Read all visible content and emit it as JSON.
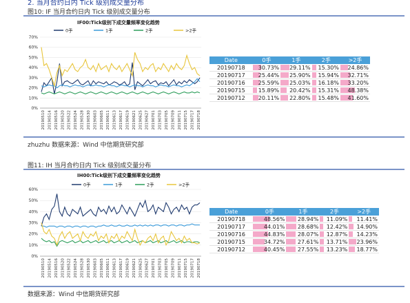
{
  "header": {
    "section_title": "2. 当月合约日内 Tick 级别成交量分布"
  },
  "figures": [
    {
      "caption": "图10:  IF 当月合约日内 Tick 级别成交量分布",
      "source": "zhuzhu 数据来源：Wind    中信期货研究部",
      "chart_data": {
        "type": "line",
        "title": "IF00:Tick级别下成交量频率变化趋势",
        "ylim": [
          0,
          70
        ],
        "yticks": [
          "0%",
          "10%",
          "20%",
          "30%",
          "40%",
          "50%",
          "60%",
          "70%"
        ],
        "x_labels": [
          "20190510",
          "20190514",
          "20190516",
          "20190520",
          "20190522",
          "20190524",
          "20190528",
          "20190530",
          "20190603",
          "20190605",
          "20190611",
          "20190613",
          "20190617",
          "20190619",
          "20190621",
          "20190625",
          "20190627",
          "20190701",
          "20190703",
          "20190705",
          "20190709",
          "20190711",
          "20190715",
          "20190717",
          "20190718"
        ],
        "series": [
          {
            "name": "0手",
            "color": "#1f3a6e",
            "values": [
              16,
              25,
              22,
              26,
              30,
              14,
              26,
              44,
              22,
              26,
              27,
              25,
              24,
              26,
              28,
              24,
              23,
              25,
              27,
              22,
              27,
              24,
              26,
              25,
              24,
              26,
              23,
              24,
              26,
              25,
              23,
              24,
              26,
              22,
              24,
              45,
              18,
              26,
              24,
              22,
              25,
              28,
              24,
              26,
              27,
              23,
              25,
              24,
              26,
              22,
              25,
              28,
              23,
              26,
              24,
              27,
              25,
              28,
              26,
              24,
              26,
              30
            ]
          },
          {
            "name": "1手",
            "color": "#3a9ad9",
            "values": [
              22,
              21,
              22,
              23,
              22,
              22,
              20,
              22,
              23,
              22,
              22,
              21,
              22,
              23,
              22,
              22,
              21,
              22,
              23,
              22,
              22,
              23,
              22,
              22,
              21,
              22,
              23,
              22,
              22,
              21,
              22,
              23,
              22,
              22,
              21,
              22,
              23,
              22,
              22,
              21,
              22,
              23,
              22,
              22,
              21,
              22,
              23,
              22,
              22,
              21,
              22,
              23,
              22,
              22,
              21,
              22,
              23,
              22,
              24,
              26,
              29,
              26
            ]
          },
          {
            "name": "2手",
            "color": "#2e9e5b",
            "values": [
              15,
              14,
              15,
              16,
              15,
              14,
              15,
              16,
              15,
              14,
              15,
              16,
              15,
              14,
              15,
              16,
              15,
              14,
              15,
              16,
              15,
              14,
              15,
              16,
              15,
              14,
              15,
              16,
              15,
              14,
              15,
              16,
              15,
              14,
              15,
              16,
              15,
              14,
              15,
              16,
              15,
              14,
              15,
              16,
              15,
              14,
              15,
              16,
              15,
              14,
              15,
              16,
              15,
              14,
              15,
              16,
              15,
              15,
              16,
              15,
              16,
              15
            ]
          },
          {
            "name": ">2手",
            "color": "#e8c53a",
            "values": [
              60,
              42,
              44,
              38,
              30,
              22,
              35,
              42,
              32,
              38,
              36,
              40,
              44,
              38,
              36,
              40,
              42,
              48,
              40,
              38,
              42,
              36,
              44,
              38,
              40,
              42,
              36,
              44,
              40,
              38,
              42,
              36,
              40,
              44,
              38,
              32,
              55,
              48,
              44,
              36,
              40,
              38,
              42,
              44,
              36,
              40,
              38,
              44,
              40,
              36,
              42,
              38,
              44,
              40,
              38,
              42,
              52,
              44,
              38,
              40,
              34,
              32
            ]
          }
        ]
      },
      "table": {
        "headers": [
          "Date",
          "0手",
          "1手",
          "2手",
          ">2手"
        ],
        "rows": [
          [
            "20190718",
            "30.73%",
            "29.11%",
            "15.30%",
            "24.86%"
          ],
          [
            "20190717",
            "25.44%",
            "25.90%",
            "15.94%",
            "32.71%"
          ],
          [
            "20190716",
            "25.59%",
            "25.03%",
            "16.18%",
            "33.20%"
          ],
          [
            "20190715",
            "15.89%",
            "20.42%",
            "15.31%",
            "48.38%"
          ],
          [
            "20190712",
            "20.11%",
            "22.80%",
            "15.48%",
            "41.60%"
          ]
        ],
        "fractions": [
          [
            0.31,
            0.29,
            0.15,
            0.25
          ],
          [
            0.25,
            0.26,
            0.16,
            0.33
          ],
          [
            0.26,
            0.25,
            0.16,
            0.33
          ],
          [
            0.16,
            0.2,
            0.15,
            0.48
          ],
          [
            0.2,
            0.23,
            0.15,
            0.42
          ]
        ]
      }
    },
    {
      "caption": "图11:  IH 当月合约日内 Tick 级别成交量分布",
      "source": "数据来源：Wind    中信期货研究部",
      "chart_data": {
        "type": "line",
        "title": "IH00:Tick级别下成交量频率变化趋势",
        "ylim": [
          0,
          60
        ],
        "yticks": [
          "0%",
          "10%",
          "20%",
          "30%",
          "40%",
          "50%",
          "60%"
        ],
        "x_labels": [
          "20190510",
          "20190514",
          "20190516",
          "20190520",
          "20190522",
          "20190524",
          "20190528",
          "20190530",
          "20190603",
          "20190605",
          "20190611",
          "20190613",
          "20190617",
          "20190619",
          "20190621",
          "20190625",
          "20190627",
          "20190701",
          "20190703",
          "20190705",
          "20190709",
          "20190711",
          "20190715",
          "20190717",
          "20190718"
        ],
        "series": [
          {
            "name": "0手",
            "color": "#1f3a6e",
            "values": [
              27,
              35,
              38,
              33,
              42,
              45,
              56,
              40,
              36,
              44,
              38,
              36,
              42,
              40,
              38,
              44,
              36,
              38,
              40,
              42,
              38,
              36,
              44,
              40,
              42,
              38,
              45,
              40,
              44,
              38,
              40,
              46,
              42,
              38,
              44,
              40,
              36,
              42,
              48,
              44,
              50,
              40,
              42,
              46,
              38,
              44,
              42,
              40,
              48,
              44,
              38,
              42,
              44,
              40,
              46,
              42,
              44,
              38,
              44,
              46,
              46,
              48
            ]
          },
          {
            "name": "1手",
            "color": "#3a9ad9",
            "values": [
              27,
              27,
              26,
              27,
              27,
              27,
              26,
              27,
              27,
              26,
              27,
              27,
              26,
              27,
              27,
              26,
              27,
              27,
              26,
              27,
              27,
              26,
              27,
              27,
              28,
              27,
              27,
              28,
              27,
              27,
              28,
              27,
              27,
              28,
              27,
              27,
              28,
              27,
              28,
              27,
              28,
              27,
              28,
              27,
              28,
              28,
              27,
              28,
              28,
              27,
              28,
              28,
              27,
              28,
              28,
              27,
              28,
              28,
              29,
              28,
              28,
              28
            ]
          },
          {
            "name": "2手",
            "color": "#2e9e5b",
            "values": [
              16,
              14,
              13,
              14,
              12,
              13,
              9,
              13,
              14,
              13,
              12,
              13,
              14,
              12,
              13,
              14,
              12,
              13,
              14,
              12,
              13,
              14,
              12,
              13,
              14,
              12,
              13,
              14,
              12,
              13,
              14,
              12,
              13,
              14,
              12,
              13,
              14,
              12,
              13,
              14,
              12,
              13,
              14,
              12,
              13,
              14,
              12,
              13,
              14,
              12,
              13,
              14,
              12,
              13,
              14,
              12,
              13,
              13,
              12,
              13,
              13,
              12
            ]
          },
          {
            "name": ">2手",
            "color": "#e8c53a",
            "values": [
              30,
              22,
              20,
              24,
              18,
              16,
              10,
              18,
              22,
              16,
              20,
              22,
              16,
              18,
              20,
              14,
              22,
              18,
              16,
              20,
              18,
              22,
              14,
              18,
              16,
              20,
              12,
              18,
              16,
              20,
              14,
              18,
              16,
              22,
              18,
              14,
              24,
              16,
              10,
              14,
              12,
              16,
              18,
              14,
              20,
              12,
              16,
              18,
              10,
              14,
              22,
              18,
              14,
              16,
              12,
              18,
              14,
              16,
              12,
              12,
              11,
              12
            ]
          }
        ]
      },
      "table": {
        "headers": [
          "Date",
          "0手",
          "1手",
          "2手",
          ">2手"
        ],
        "rows": [
          [
            "20190718",
            "48.56%",
            "28.94%",
            "11.09%",
            "11.41%"
          ],
          [
            "20190717",
            "44.01%",
            "28.68%",
            "12.42%",
            "14.90%"
          ],
          [
            "20190716",
            "44.83%",
            "28.07%",
            "12.87%",
            "14.23%"
          ],
          [
            "20190715",
            "34.72%",
            "27.61%",
            "13.71%",
            "23.96%"
          ],
          [
            "20190712",
            "40.45%",
            "27.55%",
            "13.23%",
            "18.77%"
          ]
        ],
        "fractions": [
          [
            0.49,
            0.29,
            0.11,
            0.11
          ],
          [
            0.44,
            0.29,
            0.12,
            0.15
          ],
          [
            0.45,
            0.28,
            0.13,
            0.14
          ],
          [
            0.35,
            0.28,
            0.14,
            0.24
          ],
          [
            0.4,
            0.28,
            0.13,
            0.19
          ]
        ]
      }
    }
  ]
}
